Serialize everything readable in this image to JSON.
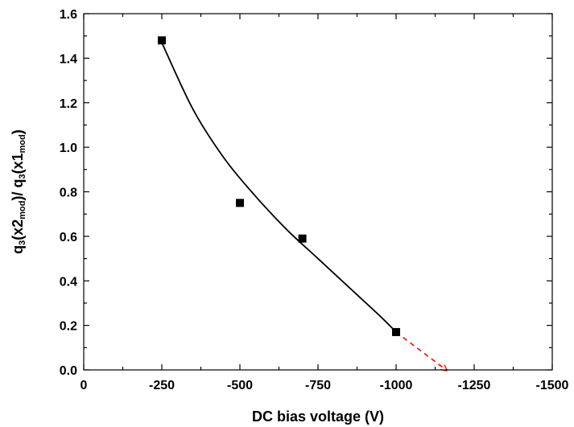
{
  "chart_data": {
    "type": "scatter",
    "title": "",
    "xlabel": "DC bias voltage (V)",
    "ylabel": {
      "parts": [
        {
          "text": "q",
          "sub": false
        },
        {
          "text": "3",
          "sub": true
        },
        {
          "text": "(x2",
          "sub": false
        },
        {
          "text": "mod",
          "sub": true
        },
        {
          "text": ")/ q",
          "sub": false
        },
        {
          "text": "3",
          "sub": true
        },
        {
          "text": "(x1",
          "sub": false
        },
        {
          "text": "mod",
          "sub": true
        },
        {
          "text": ")",
          "sub": false
        }
      ]
    },
    "xlim": [
      0,
      -1500
    ],
    "ylim": [
      0.0,
      1.6
    ],
    "x_ticks": [
      0,
      -250,
      -500,
      -750,
      -1000,
      -1250,
      -1500
    ],
    "x_tick_labels": [
      "0",
      "-250",
      "-500",
      "-750",
      "-1000",
      "-1250",
      "-1500"
    ],
    "y_ticks": [
      0.0,
      0.2,
      0.4,
      0.6,
      0.8,
      1.0,
      1.2,
      1.4,
      1.6
    ],
    "y_tick_labels": [
      "0.0",
      "0.2",
      "0.4",
      "0.6",
      "0.8",
      "1.0",
      "1.2",
      "1.4",
      "1.6"
    ],
    "grid": false,
    "legend": "none",
    "series": [
      {
        "kind": "markers",
        "marker": "square",
        "color": "#000000",
        "x": [
          -250,
          -500,
          -700,
          -1000
        ],
        "y": [
          1.48,
          0.75,
          0.59,
          0.17
        ]
      },
      {
        "kind": "fit-curve",
        "color": "#000000",
        "x": [
          -250,
          -350,
          -450,
          -550,
          -650,
          -750,
          -850,
          -950,
          -1000
        ],
        "y": [
          1.47,
          1.17,
          0.95,
          0.78,
          0.63,
          0.5,
          0.37,
          0.24,
          0.17
        ]
      },
      {
        "kind": "extrapolation",
        "color": "#ff0000",
        "dashed": true,
        "arrow": true,
        "x": [
          -1000,
          -1160
        ],
        "y": [
          0.17,
          0.0
        ]
      }
    ]
  }
}
